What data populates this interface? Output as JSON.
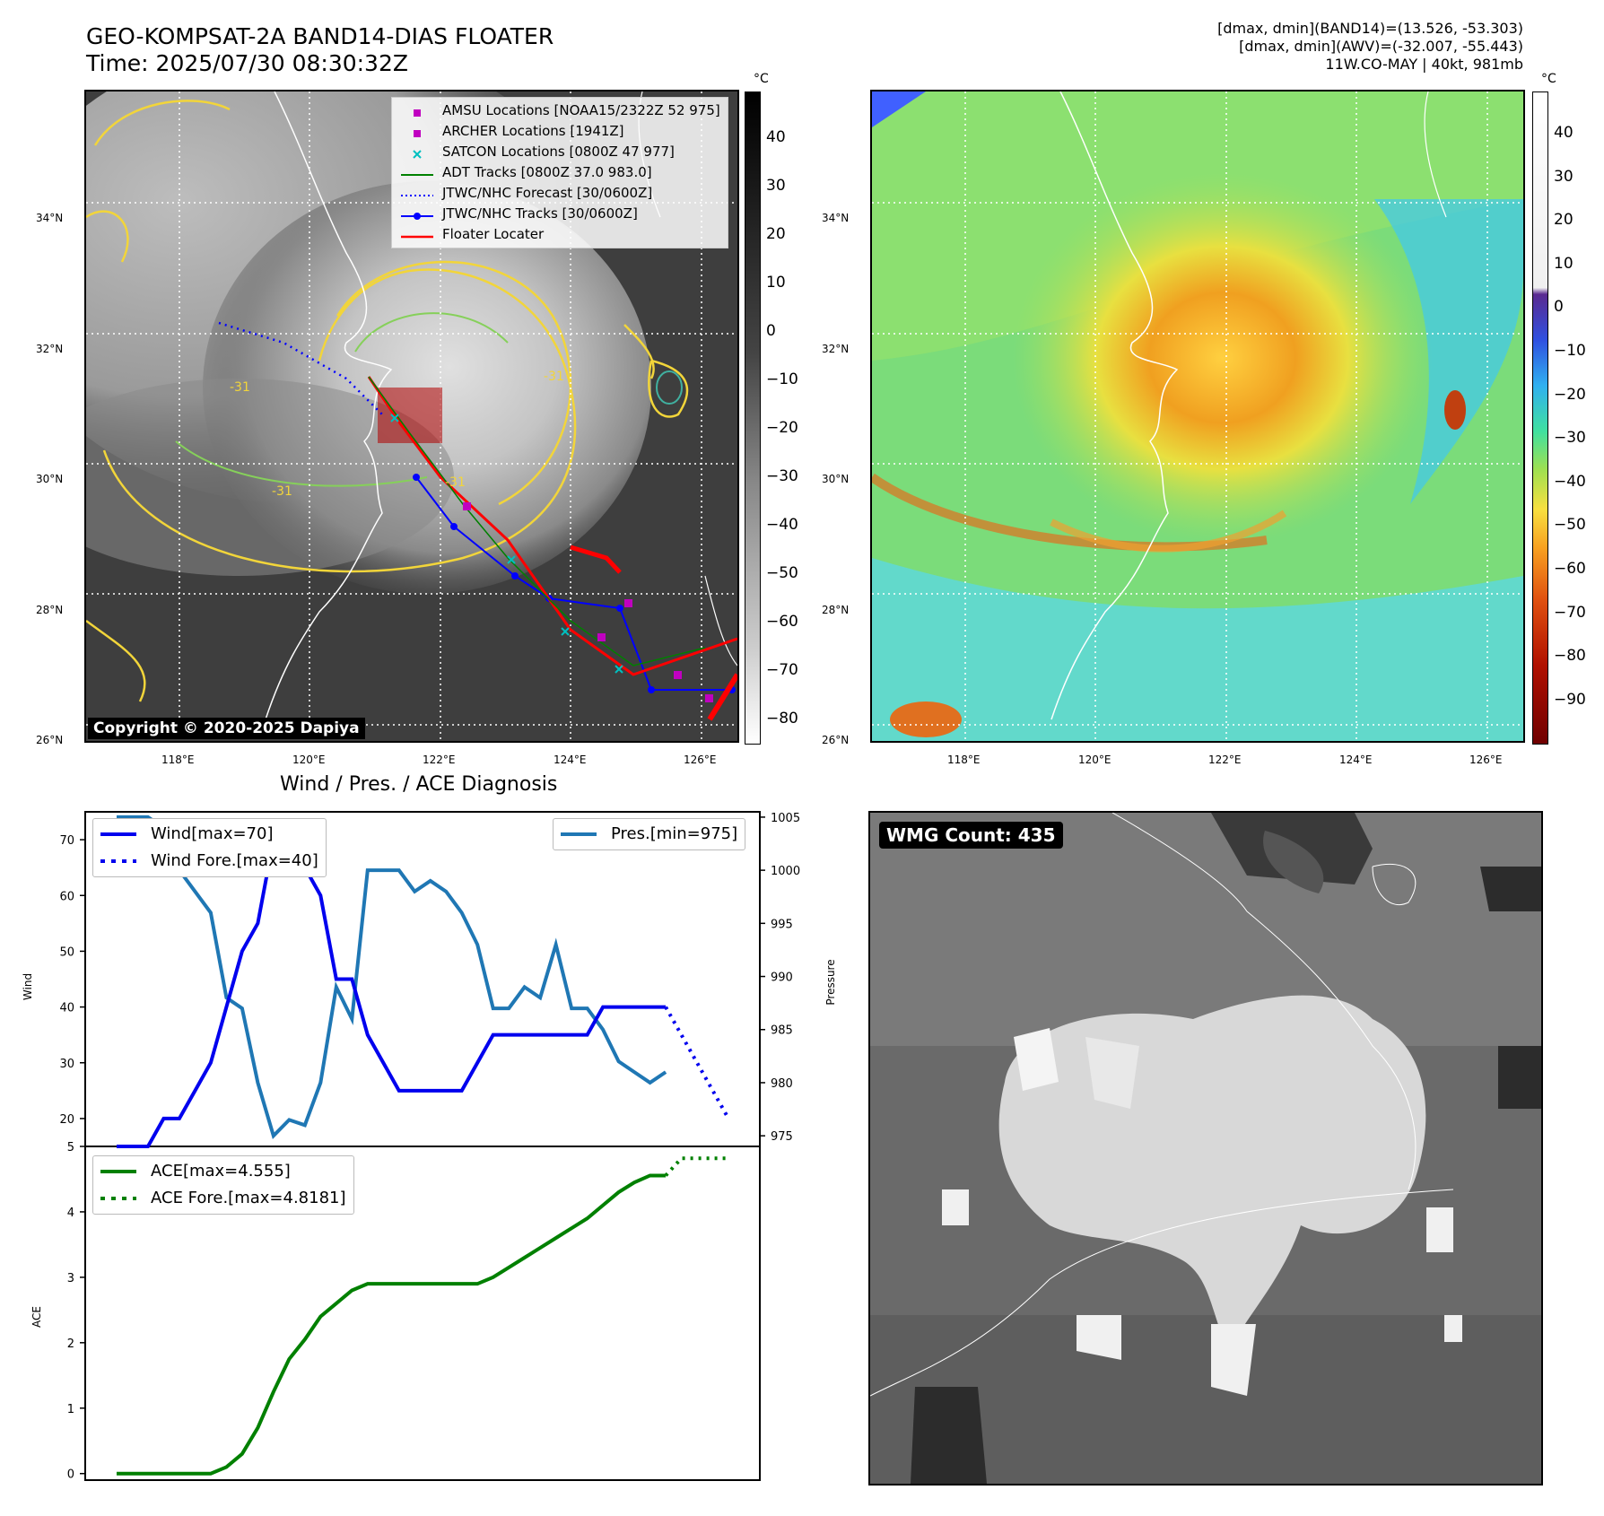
{
  "header": {
    "title_line1": "GEO-KOMPSAT-2A BAND14-DIAS FLOATER",
    "title_line2": "Time: 2025/07/30 08:30:32Z",
    "right_line1": "[dmax, dmin](BAND14)=(13.526, -53.303)",
    "right_line2": "[dmax, dmin](AWV)=(-32.007, -55.443)",
    "right_line3": "11W.CO-MAY | 40kt, 981mb"
  },
  "map": {
    "lat_labels": [
      "34°N",
      "32°N",
      "30°N",
      "28°N",
      "26°N"
    ],
    "lon_labels": [
      "118°E",
      "120°E",
      "122°E",
      "124°E",
      "126°E"
    ],
    "copyright": "Copyright © 2020-2025 Dapiya",
    "contour_labels": [
      "-31",
      "-31",
      "-31",
      "-31"
    ],
    "legend": [
      {
        "label": "AMSU Locations [NOAA15/2322Z 52 975]",
        "color": "#c000c0",
        "marker": "square"
      },
      {
        "label": "ARCHER Locations [1941Z]",
        "color": "#c000c0",
        "marker": "square"
      },
      {
        "label": "SATCON Locations [0800Z 47 977]",
        "color": "#00c0c0",
        "marker": "x"
      },
      {
        "label": "ADT Tracks [0800Z 37.0 983.0]",
        "color": "#008000",
        "marker": "line"
      },
      {
        "label": "JTWC/NHC Forecast [30/0600Z]",
        "color": "#0000ff",
        "marker": "dotted"
      },
      {
        "label": "JTWC/NHC Tracks [30/0600Z]",
        "color": "#0000ff",
        "marker": "line-dot"
      },
      {
        "label": "Floater Locater",
        "color": "#ff0000",
        "marker": "line"
      }
    ]
  },
  "colorbar_left": {
    "unit": "°C",
    "ticks": [
      "40",
      "30",
      "20",
      "10",
      "0",
      "−10",
      "−20",
      "−30",
      "−40",
      "−50",
      "−60",
      "−70",
      "−80"
    ]
  },
  "colorbar_right": {
    "unit": "°C",
    "ticks": [
      "40",
      "30",
      "20",
      "10",
      "0",
      "−10",
      "−20",
      "−30",
      "−40",
      "−50",
      "−60",
      "−70",
      "−80",
      "−90"
    ]
  },
  "diag": {
    "title": "Wind / Pres. / ACE Diagnosis",
    "wind_label": "Wind",
    "pressure_label": "Pressure",
    "ace_label": "ACE",
    "legend_wind": "Wind[max=70]",
    "legend_wind_fore": "Wind Fore.[max=40]",
    "legend_pres": "Pres.[min=975]",
    "legend_ace": "ACE[max=4.555]",
    "legend_ace_fore": "ACE Fore.[max=4.8181]",
    "wind_ticks": [
      "70",
      "60",
      "50",
      "40",
      "30",
      "20"
    ],
    "pres_ticks": [
      "1005",
      "1000",
      "995",
      "990",
      "985",
      "980",
      "975"
    ],
    "ace_ticks": [
      "5",
      "4",
      "3",
      "2",
      "1",
      "0"
    ]
  },
  "wmg": {
    "count_label": "WMG Count: 435"
  },
  "chart_data": [
    {
      "type": "line",
      "title": "Wind / Pres. / ACE Diagnosis",
      "x": [
        0,
        1,
        2,
        3,
        4,
        5,
        6,
        7,
        8,
        9,
        10,
        11,
        12,
        13,
        14,
        15,
        16,
        17,
        18,
        19,
        20,
        21,
        22,
        23,
        24,
        25,
        26,
        27,
        28,
        29,
        30,
        31,
        32,
        33,
        34,
        35
      ],
      "series": [
        {
          "name": "Wind[max=70]",
          "axis": "left",
          "ylim": [
            15,
            75
          ],
          "values": [
            15,
            15,
            15,
            20,
            20,
            25,
            30,
            40,
            50,
            55,
            70,
            65,
            65,
            60,
            45,
            45,
            35,
            30,
            25,
            25,
            25,
            25,
            25,
            30,
            35,
            35,
            35,
            35,
            35,
            35,
            35,
            40,
            40,
            40,
            40,
            40
          ]
        },
        {
          "name": "Wind Fore.[max=40]",
          "axis": "left",
          "style": "dotted",
          "x": [
            35,
            36,
            37,
            38,
            39
          ],
          "values": [
            40,
            35,
            30,
            25,
            20
          ]
        },
        {
          "name": "Pres.[min=975]",
          "axis": "right",
          "ylim": [
            974,
            1005.5
          ],
          "values": [
            1005,
            1005,
            1005,
            1004,
            1000,
            998,
            996,
            988,
            987,
            980,
            975,
            976.5,
            976,
            980,
            989,
            986,
            1000,
            1000,
            1000,
            998,
            999,
            998,
            996,
            993,
            987,
            987,
            989,
            988,
            993,
            987,
            987,
            985,
            982,
            981,
            980,
            981
          ]
        }
      ]
    },
    {
      "type": "line",
      "series": [
        {
          "name": "ACE[max=4.555]",
          "ylim": [
            -0.1,
            5
          ],
          "x": [
            0,
            1,
            2,
            3,
            4,
            5,
            6,
            7,
            8,
            9,
            10,
            11,
            12,
            13,
            14,
            15,
            16,
            17,
            18,
            19,
            20,
            21,
            22,
            23,
            24,
            25,
            26,
            27,
            28,
            29,
            30,
            31,
            32,
            33,
            34,
            35
          ],
          "values": [
            0,
            0,
            0,
            0,
            0,
            0,
            0,
            0.1,
            0.3,
            0.7,
            1.25,
            1.75,
            2.05,
            2.4,
            2.6,
            2.8,
            2.9,
            2.9,
            2.9,
            2.9,
            2.9,
            2.9,
            2.9,
            2.9,
            3.0,
            3.15,
            3.3,
            3.45,
            3.6,
            3.75,
            3.9,
            4.1,
            4.3,
            4.45,
            4.555,
            4.555
          ]
        },
        {
          "name": "ACE Fore.[max=4.8181]",
          "style": "dotted",
          "x": [
            35,
            36,
            37,
            38,
            39
          ],
          "values": [
            4.555,
            4.8181,
            4.8181,
            4.8181,
            4.8181
          ]
        }
      ]
    }
  ]
}
